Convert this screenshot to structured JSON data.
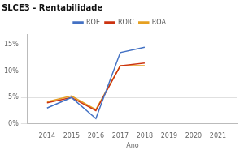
{
  "chart_data": {
    "type": "line",
    "title": "SLCE3 - Rentabilidade",
    "xlabel": "Ano",
    "x": [
      2014,
      2015,
      2016,
      2017,
      2018
    ],
    "series": [
      {
        "name": "ROE",
        "color": "#4472c4",
        "values": [
          3.0,
          5.0,
          1.0,
          13.5,
          14.5
        ]
      },
      {
        "name": "ROIC",
        "color": "#cc3311",
        "values": [
          4.0,
          5.0,
          2.5,
          11.0,
          11.5
        ]
      },
      {
        "name": "ROA",
        "color": "#e6a020",
        "values": [
          4.2,
          5.3,
          2.7,
          11.0,
          11.0
        ]
      }
    ],
    "xlim": [
      2013.2,
      2021.8
    ],
    "xticks": [
      2014,
      2015,
      2016,
      2017,
      2018,
      2019,
      2020,
      2021
    ],
    "ylim": [
      0,
      17
    ],
    "yticks": [
      {
        "value": 0,
        "label": "0%"
      },
      {
        "value": 5,
        "label": "5%"
      },
      {
        "value": 10,
        "label": "10%"
      },
      {
        "value": 15,
        "label": "15%"
      }
    ],
    "grid": true,
    "legend": "top"
  }
}
